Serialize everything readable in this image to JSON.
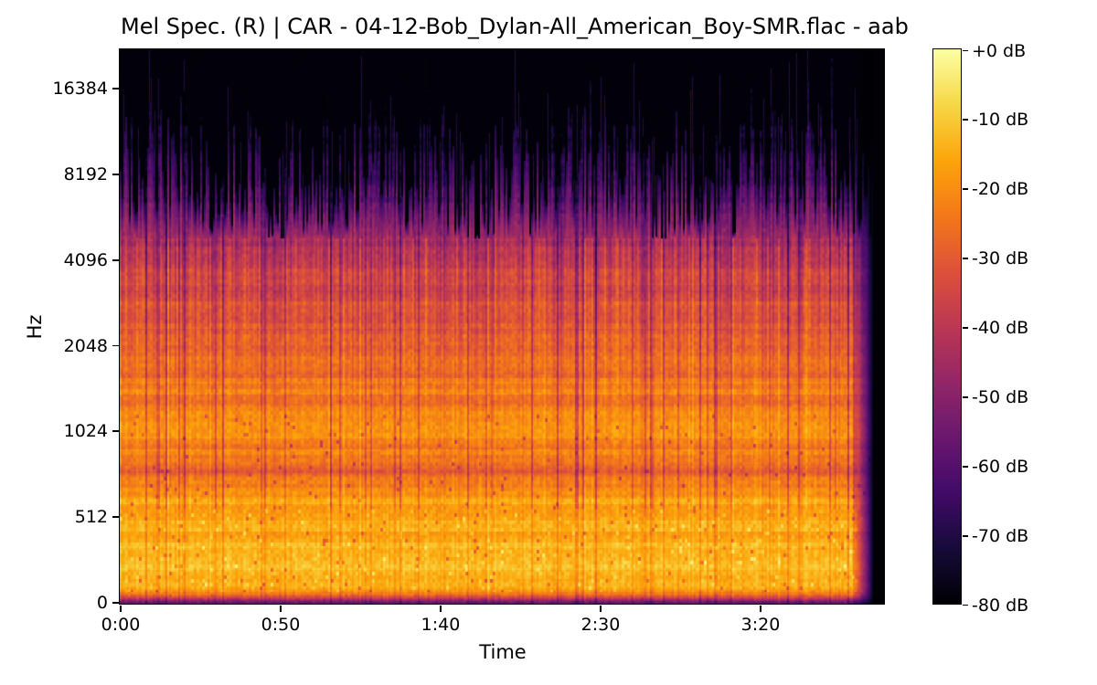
{
  "figure": {
    "background": "#ffffff",
    "text_color": "#000000"
  },
  "title": "Mel Spec. (R) | CAR - 04-12-Bob_Dylan-All_American_Boy-SMR.flac - aab",
  "axes": {
    "x_label": "Time",
    "y_label": "Hz",
    "x_tick_labels": [
      "0:00",
      "0:50",
      "1:40",
      "2:30",
      "3:20"
    ],
    "y_tick_labels": [
      "16384",
      "8192",
      "4096",
      "2048",
      "1024",
      "512",
      "0"
    ]
  },
  "colorbar": {
    "tick_labels": [
      "+0 dB",
      "-10 dB",
      "-20 dB",
      "-30 dB",
      "-40 dB",
      "-50 dB",
      "-60 dB",
      "-70 dB",
      "-80 dB"
    ],
    "colormap": "inferno"
  },
  "chart_data": {
    "type": "heatmap",
    "subtype": "mel_spectrogram",
    "channel": "R",
    "title": "Mel Spec. (R) | CAR - 04-12-Bob_Dylan-All_American_Boy-SMR.flac - aab",
    "xlabel": "Time",
    "ylabel": "Hz",
    "x_tick_labels": [
      "0:00",
      "0:50",
      "1:40",
      "2:30",
      "3:20"
    ],
    "x_ticks_seconds": [
      0,
      50,
      100,
      150,
      200
    ],
    "x_range_seconds": [
      0,
      239
    ],
    "audio_end_seconds": 235,
    "y_scale": "mel",
    "y_ticks_hz": [
      0,
      512,
      1024,
      2048,
      4096,
      8192,
      16384
    ],
    "db_range": [
      -80,
      0
    ],
    "colorbar_ticks_db": [
      0,
      -10,
      -20,
      -30,
      -40,
      -50,
      -60,
      -70,
      -80
    ],
    "legend": "none",
    "grid": false,
    "band_levels_db": [
      {
        "hz": 0,
        "db": -60
      },
      {
        "hz": 60,
        "db": -24
      },
      {
        "hz": 150,
        "db": -13.5
      },
      {
        "hz": 300,
        "db": -14
      },
      {
        "hz": 500,
        "db": -16
      },
      {
        "hz": 650,
        "db": -19
      },
      {
        "hz": 800,
        "db": -33
      },
      {
        "hz": 1000,
        "db": -21.5
      },
      {
        "hz": 1500,
        "db": -24
      },
      {
        "hz": 2000,
        "db": -27
      },
      {
        "hz": 2800,
        "db": -30
      },
      {
        "hz": 4000,
        "db": -33.5
      },
      {
        "hz": 5500,
        "db": -37
      },
      {
        "hz": 8000,
        "db": -44
      },
      {
        "hz": 10000,
        "db": -50
      },
      {
        "hz": 12000,
        "db": -57
      },
      {
        "hz": 14000,
        "db": -63
      },
      {
        "hz": 16000,
        "db": -68
      },
      {
        "hz": 19000,
        "db": -74
      },
      {
        "hz": 22000,
        "db": -80
      }
    ],
    "level_profile": [
      [
        0.0,
        -60
      ],
      [
        0.004,
        -52
      ],
      [
        0.01,
        -36
      ],
      [
        0.016,
        -24
      ],
      [
        0.03,
        -15
      ],
      [
        0.09,
        -13.5
      ],
      [
        0.15,
        -16
      ],
      [
        0.2,
        -19
      ],
      [
        0.228,
        -23
      ],
      [
        0.24,
        -33
      ],
      [
        0.254,
        -25
      ],
      [
        0.3,
        -21.5
      ],
      [
        0.36,
        -24
      ],
      [
        0.42,
        -27
      ],
      [
        0.48,
        -30
      ],
      [
        0.54,
        -33.5
      ],
      [
        0.6,
        -37
      ],
      [
        0.65,
        -44
      ],
      [
        0.7,
        -50
      ],
      [
        0.74,
        -57
      ],
      [
        0.78,
        -63
      ],
      [
        0.82,
        -68
      ],
      [
        0.87,
        -74
      ],
      [
        0.92,
        -78
      ],
      [
        1.0,
        -80
      ]
    ],
    "colormap_stops": [
      [
        0.0,
        "#000004"
      ],
      [
        0.1,
        "#160b39"
      ],
      [
        0.2,
        "#420a68"
      ],
      [
        0.3,
        "#6a176e"
      ],
      [
        0.4,
        "#932667"
      ],
      [
        0.5,
        "#bc3754"
      ],
      [
        0.6,
        "#dd513a"
      ],
      [
        0.7,
        "#f37819"
      ],
      [
        0.8,
        "#fca50a"
      ],
      [
        0.9,
        "#f6d746"
      ],
      [
        1.0,
        "#fcffa4"
      ]
    ],
    "texture": {
      "seed": 1337,
      "col_gain_db": 6,
      "stripe_chance": 0.09,
      "stripe_db_min": 6,
      "stripe_db_max": 15,
      "bright_col_chance": 0.06,
      "bright_col_db": 3.5,
      "row_band_db": 5,
      "row_slow_db": 3,
      "cell_noise_db": 7,
      "fleck_chance": 0.035,
      "fleck_db": 6.5,
      "fleck_zone": [
        0.02,
        0.17
      ],
      "dark_speck_chance": 0.02,
      "dark_speck_db": -12,
      "dark_speck_zone": [
        0.02,
        0.34
      ],
      "spike_start_frac": 0.66,
      "spike_spread": 0.2,
      "spike_pow": 1.4,
      "tall_chance": 0.09,
      "tall_extra": 0.19,
      "thin_chance": 0.22,
      "thin_extra_max": 0.15,
      "spike_top_db": -71,
      "spike_gain_db": 8,
      "end_fade_start": 0.958,
      "end_black_start": 0.9856
    }
  }
}
